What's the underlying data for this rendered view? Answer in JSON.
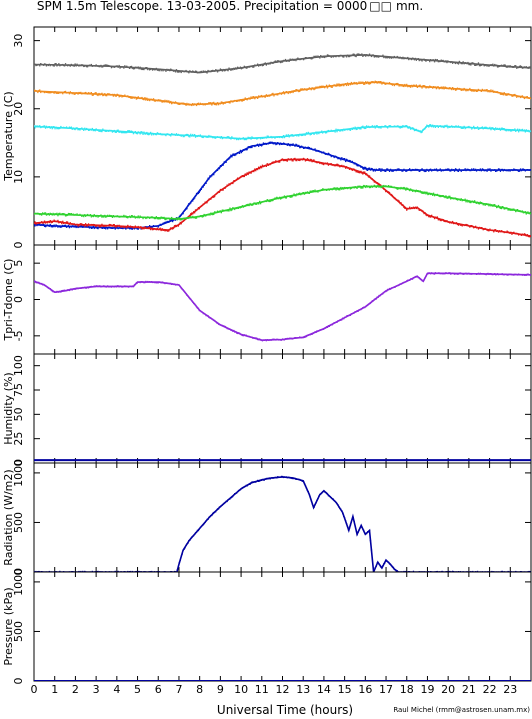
{
  "title": "SPM 1.5m Telescope. 13-03-2005. Precipitation = 0000",
  "title_suffix": "mm.",
  "xlabel": "Universal Time (hours)",
  "credit": "Raul Michel (rmm@astrosen.unam.mx)",
  "x_ticks": [
    "0",
    "1",
    "2",
    "3",
    "4",
    "5",
    "6",
    "7",
    "8",
    "9",
    "10",
    "11",
    "12",
    "13",
    "14",
    "15",
    "16",
    "17",
    "18",
    "19",
    "20",
    "21",
    "22",
    "23"
  ],
  "xlim": [
    0,
    24
  ],
  "colors": {
    "gray": "#606060",
    "orange": "#f08c1e",
    "cyan": "#32e6f0",
    "blue": "#0018c8",
    "red": "#e01818",
    "green": "#30d230",
    "purple": "#8c28dc",
    "navy": "#0000a0"
  },
  "panels": [
    {
      "ylabel": "Temperature (C)",
      "yticks": [
        "0",
        "10",
        "20",
        "30"
      ],
      "ylim": [
        0,
        32
      ]
    },
    {
      "ylabel": "Tpri-Tdome (C)",
      "yticks": [
        "-5",
        "0",
        "5"
      ],
      "ylim": [
        -7.5,
        7.5
      ]
    },
    {
      "ylabel": "Humidity (%)",
      "yticks": [
        "0",
        "25",
        "50",
        "75",
        "100"
      ],
      "ylim": [
        0,
        112
      ]
    },
    {
      "ylabel": "Radiation (W/m2)",
      "yticks": [
        "0",
        "500",
        "1000"
      ],
      "ylim": [
        0,
        1100
      ]
    },
    {
      "ylabel": "Pressure (kPa)",
      "yticks": [
        "0",
        "500",
        "1000"
      ],
      "ylim": [
        0,
        1100
      ]
    }
  ],
  "chart_data": [
    {
      "type": "scatter",
      "title": "SPM 1.5m Telescope. 13-03-2005. Precipitation = 0000 mm.",
      "xlabel": "Universal Time (hours)",
      "ylabel": "Temperature (C)",
      "ylim": [
        0,
        32
      ],
      "series": [
        {
          "color": "#606060",
          "x": [
            0,
            2,
            4,
            6,
            8,
            10,
            12,
            14,
            16,
            18,
            20,
            22,
            24
          ],
          "y": [
            26.5,
            26.4,
            26.2,
            25.8,
            25.3,
            26,
            27,
            27.7,
            27.9,
            27.4,
            26.9,
            26.4,
            26
          ]
        },
        {
          "color": "#f08c1e",
          "x": [
            0,
            2,
            4,
            6,
            7.5,
            9,
            11,
            13,
            15,
            16.5,
            18,
            20,
            22,
            24
          ],
          "y": [
            22.6,
            22.3,
            22,
            21.2,
            20.6,
            20.8,
            21.8,
            22.8,
            23.6,
            23.9,
            23.4,
            23,
            22.6,
            21.5
          ]
        },
        {
          "color": "#32e6f0",
          "x": [
            0,
            2,
            4,
            6,
            8,
            10,
            12,
            14,
            16,
            18,
            18.7,
            19,
            20,
            22,
            24
          ],
          "y": [
            17.4,
            17.1,
            16.7,
            16.3,
            16,
            15.6,
            15.9,
            16.6,
            17.3,
            17.4,
            16.6,
            17.5,
            17.4,
            17.1,
            16.7
          ]
        },
        {
          "color": "#0018c8",
          "x": [
            0,
            1,
            2,
            3,
            4,
            5,
            6,
            7,
            7.5,
            8.5,
            9.5,
            10.5,
            11.5,
            12.5,
            13.5,
            14.5,
            15.5,
            16,
            16.5,
            18,
            20,
            22,
            24
          ],
          "y": [
            3,
            2.8,
            2.7,
            2.6,
            2.5,
            2.5,
            2.8,
            4,
            6,
            10,
            13,
            14.5,
            15,
            14.7,
            14,
            13,
            12,
            11.2,
            11,
            11,
            11,
            11,
            11
          ]
        },
        {
          "color": "#e01818",
          "x": [
            0,
            1,
            2,
            3,
            4,
            5,
            6,
            6.5,
            7,
            8,
            9,
            10,
            11,
            12,
            13,
            14,
            15,
            16,
            17,
            18,
            18.5,
            19,
            20,
            21,
            22,
            23,
            24
          ],
          "y": [
            3.2,
            3.5,
            3,
            2.9,
            2.8,
            2.6,
            2.3,
            2.2,
            3,
            5.5,
            8,
            10,
            11.5,
            12.5,
            12.6,
            12,
            11.5,
            10.5,
            8,
            5.3,
            5.5,
            4.4,
            3.4,
            2.8,
            2.2,
            1.8,
            1.3
          ]
        },
        {
          "color": "#30d230",
          "x": [
            0,
            2,
            4,
            6,
            7,
            8,
            10,
            12,
            14,
            16,
            17,
            18,
            20,
            22,
            24
          ],
          "y": [
            4.6,
            4.4,
            4.2,
            4,
            3.8,
            4.2,
            5.6,
            7,
            8.1,
            8.6,
            8.6,
            8.2,
            7,
            5.9,
            4.6
          ]
        }
      ]
    },
    {
      "type": "scatter",
      "ylabel": "Tpri-Tdome (C)",
      "ylim": [
        -7.5,
        7.5
      ],
      "series": [
        {
          "color": "#8c28dc",
          "x": [
            0,
            0.5,
            1,
            1.5,
            2,
            3,
            4,
            4.8,
            5,
            6,
            7,
            8,
            9,
            10,
            11,
            12,
            13,
            14,
            15,
            16,
            17,
            18,
            18.5,
            18.8,
            19,
            20,
            22,
            24
          ],
          "y": [
            2.5,
            2,
            1,
            1.2,
            1.5,
            1.8,
            1.8,
            1.8,
            2.4,
            2.4,
            2,
            -1.5,
            -3.5,
            -4.8,
            -5.6,
            -5.5,
            -5.2,
            -4,
            -2.5,
            -1,
            1.2,
            2.5,
            3.2,
            2.5,
            3.6,
            3.6,
            3.5,
            3.4
          ]
        }
      ]
    },
    {
      "type": "line",
      "ylabel": "Humidity (%)",
      "ylim": [
        0,
        112
      ],
      "series": [
        {
          "color": "#0000a0",
          "x": [
            0,
            24
          ],
          "y": [
            3,
            3
          ]
        }
      ]
    },
    {
      "type": "scatter",
      "ylabel": "Radiation (W/m2)",
      "ylim": [
        0,
        1100
      ],
      "series": [
        {
          "color": "#0000a0",
          "x": [
            0,
            6.9,
            7,
            7.2,
            7.5,
            8,
            8.5,
            9,
            9.5,
            10,
            10.5,
            11,
            11.5,
            12,
            12.5,
            13,
            13.3,
            13.5,
            13.8,
            14,
            14.3,
            14.6,
            14.9,
            15.2,
            15.4,
            15.6,
            15.8,
            16,
            16.2,
            16.4,
            16.6,
            16.8,
            17,
            17.2,
            17.4,
            17.6,
            24
          ],
          "y": [
            0,
            0,
            80,
            220,
            320,
            440,
            560,
            660,
            750,
            840,
            900,
            930,
            950,
            960,
            950,
            920,
            780,
            650,
            780,
            820,
            760,
            700,
            600,
            420,
            560,
            380,
            470,
            380,
            420,
            0,
            100,
            40,
            120,
            80,
            30,
            0,
            0
          ]
        }
      ]
    },
    {
      "type": "line",
      "ylabel": "Pressure (kPa)",
      "ylim": [
        0,
        1100
      ],
      "series": [
        {
          "color": "#0000a0",
          "x": [
            0,
            24
          ],
          "y": [
            0,
            0
          ]
        }
      ]
    }
  ]
}
